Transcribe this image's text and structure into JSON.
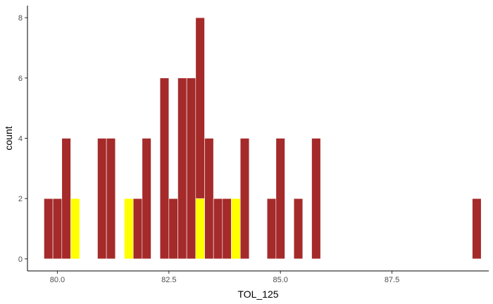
{
  "chart_data": {
    "type": "bar",
    "xlabel": "TOL_125",
    "ylabel": "count",
    "xlim": [
      79.33,
      89.67
    ],
    "ylim": [
      -0.4,
      8.4
    ],
    "x_ticks": [
      {
        "value": 80.0,
        "label": "80.0"
      },
      {
        "value": 82.5,
        "label": "82.5"
      },
      {
        "value": 85.0,
        "label": "85.0"
      },
      {
        "value": 87.5,
        "label": "87.5"
      }
    ],
    "y_ticks": [
      {
        "value": 0,
        "label": "0"
      },
      {
        "value": 2,
        "label": "2"
      },
      {
        "value": 4,
        "label": "4"
      },
      {
        "value": 6,
        "label": "6"
      },
      {
        "value": 8,
        "label": "8"
      }
    ],
    "bin_width": 0.2,
    "colors": {
      "default": "#a52a2a",
      "highlight": "#ffff00"
    },
    "bars": [
      {
        "x": 79.8,
        "count": 2,
        "highlight": false
      },
      {
        "x": 80.0,
        "count": 2,
        "highlight": false
      },
      {
        "x": 80.2,
        "count": 4,
        "highlight": false
      },
      {
        "x": 80.4,
        "count": 2,
        "highlight": true
      },
      {
        "x": 81.0,
        "count": 4,
        "highlight": false
      },
      {
        "x": 81.2,
        "count": 4,
        "highlight": false
      },
      {
        "x": 81.6,
        "count": 2,
        "highlight": true
      },
      {
        "x": 81.8,
        "count": 2,
        "highlight": false
      },
      {
        "x": 82.0,
        "count": 4,
        "highlight": false
      },
      {
        "x": 82.4,
        "count": 6,
        "highlight": false
      },
      {
        "x": 82.6,
        "count": 2,
        "highlight": false
      },
      {
        "x": 82.8,
        "count": 6,
        "highlight": false
      },
      {
        "x": 83.0,
        "count": 6,
        "highlight": false
      },
      {
        "x": 83.2,
        "count": 8,
        "highlight": false
      },
      {
        "x": 83.2,
        "count": 2,
        "highlight": true
      },
      {
        "x": 83.4,
        "count": 4,
        "highlight": false
      },
      {
        "x": 83.6,
        "count": 2,
        "highlight": false
      },
      {
        "x": 83.8,
        "count": 2,
        "highlight": false
      },
      {
        "x": 84.0,
        "count": 2,
        "highlight": true
      },
      {
        "x": 84.2,
        "count": 4,
        "highlight": false
      },
      {
        "x": 84.8,
        "count": 2,
        "highlight": false
      },
      {
        "x": 85.0,
        "count": 4,
        "highlight": false
      },
      {
        "x": 85.4,
        "count": 2,
        "highlight": false
      },
      {
        "x": 85.8,
        "count": 4,
        "highlight": false
      },
      {
        "x": 89.4,
        "count": 2,
        "highlight": false
      }
    ],
    "grid": false,
    "legend": "none"
  }
}
